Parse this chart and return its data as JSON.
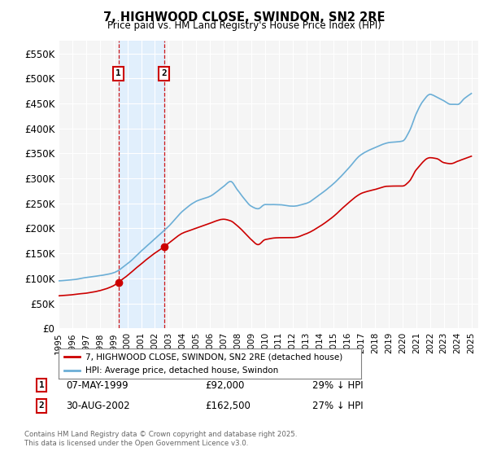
{
  "title": "7, HIGHWOOD CLOSE, SWINDON, SN2 2RE",
  "subtitle": "Price paid vs. HM Land Registry's House Price Index (HPI)",
  "ylim": [
    0,
    575000
  ],
  "yticks": [
    0,
    50000,
    100000,
    150000,
    200000,
    250000,
    300000,
    350000,
    400000,
    450000,
    500000,
    550000
  ],
  "ytick_labels": [
    "£0",
    "£50K",
    "£100K",
    "£150K",
    "£200K",
    "£250K",
    "£300K",
    "£350K",
    "£400K",
    "£450K",
    "£500K",
    "£550K"
  ],
  "background_color": "#ffffff",
  "plot_bg_color": "#f5f5f5",
  "grid_color": "#ffffff",
  "hpi_color": "#6baed6",
  "price_color": "#cc0000",
  "shade_color": "#ddeeff",
  "sale1_x": 1999.35,
  "sale1_y": 92000,
  "sale1_label": "1",
  "sale1_date": "07-MAY-1999",
  "sale1_price": "£92,000",
  "sale1_hpi": "29% ↓ HPI",
  "sale2_x": 2002.66,
  "sale2_y": 162500,
  "sale2_label": "2",
  "sale2_date": "30-AUG-2002",
  "sale2_price": "£162,500",
  "sale2_hpi": "27% ↓ HPI",
  "legend_line1": "7, HIGHWOOD CLOSE, SWINDON, SN2 2RE (detached house)",
  "legend_line2": "HPI: Average price, detached house, Swindon",
  "footnote": "Contains HM Land Registry data © Crown copyright and database right 2025.\nThis data is licensed under the Open Government Licence v3.0.",
  "xmin": 1995,
  "xmax": 2025.5
}
